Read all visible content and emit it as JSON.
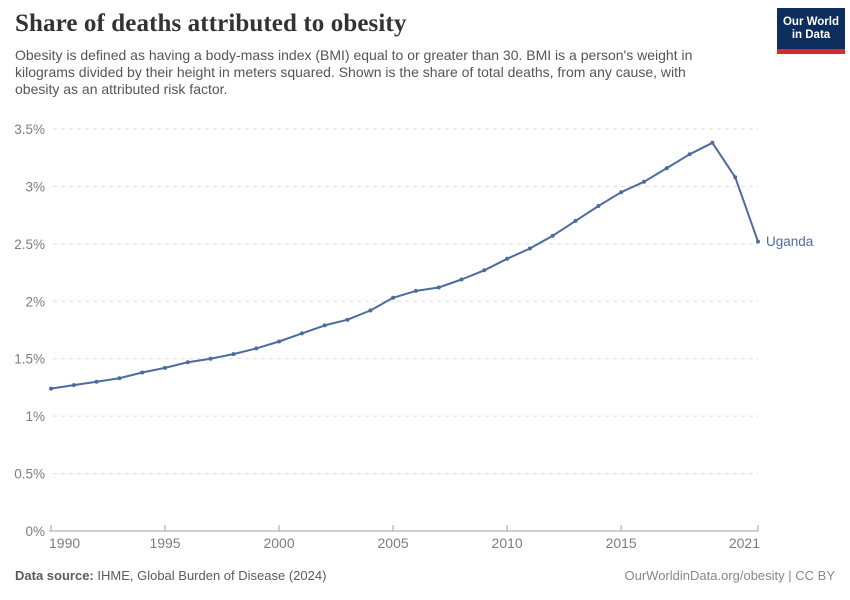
{
  "header": {
    "title": "Share of deaths attributed to obesity",
    "subtitle": "Obesity is defined as having a body-mass index (BMI) equal to or greater than 30. BMI is a person's weight in\nkilograms divided by their height in meters squared. Shown is the share of total deaths, from any cause, with\nobesity as an attributed risk factor.",
    "logo": {
      "line1": "Our World",
      "line2": "in Data",
      "bg": "#0d2e5c",
      "stripe": "#d4292f"
    }
  },
  "chart_data": {
    "type": "line",
    "title": "Share of deaths attributed to obesity",
    "xlabel": "",
    "ylabel": "",
    "xlim": [
      1990,
      2021
    ],
    "ylim": [
      0,
      3.5
    ],
    "grid": "horizontal-dashed",
    "legend_position": "end-of-line-label",
    "ytick_format": "percent",
    "xticks": [
      1990,
      1995,
      2000,
      2005,
      2010,
      2015,
      2021
    ],
    "yticks": [
      0,
      0.5,
      1,
      1.5,
      2,
      2.5,
      3,
      3.5
    ],
    "series": [
      {
        "name": "Uganda",
        "color": "#4c6b9e",
        "x": [
          1990,
          1991,
          1992,
          1993,
          1994,
          1995,
          1996,
          1997,
          1998,
          1999,
          2000,
          2001,
          2002,
          2003,
          2004,
          2005,
          2006,
          2007,
          2008,
          2009,
          2010,
          2011,
          2012,
          2013,
          2014,
          2015,
          2016,
          2017,
          2018,
          2019,
          2020,
          2021
        ],
        "values": [
          1.24,
          1.27,
          1.3,
          1.33,
          1.38,
          1.42,
          1.47,
          1.5,
          1.54,
          1.59,
          1.65,
          1.72,
          1.79,
          1.84,
          1.92,
          2.03,
          2.09,
          2.12,
          2.19,
          2.27,
          2.37,
          2.46,
          2.57,
          2.7,
          2.83,
          2.95,
          3.04,
          3.16,
          3.28,
          3.38,
          3.08,
          2.52
        ]
      }
    ],
    "colors": {
      "gridline": "#dedede",
      "axis": "#a1a1a1",
      "tick_label": "#7d7d7d"
    }
  },
  "footer": {
    "source_label": "Data source:",
    "source_text": " IHME, Global Burden of Disease (2024)",
    "credit": "OurWorldinData.org/obesity | CC BY"
  }
}
